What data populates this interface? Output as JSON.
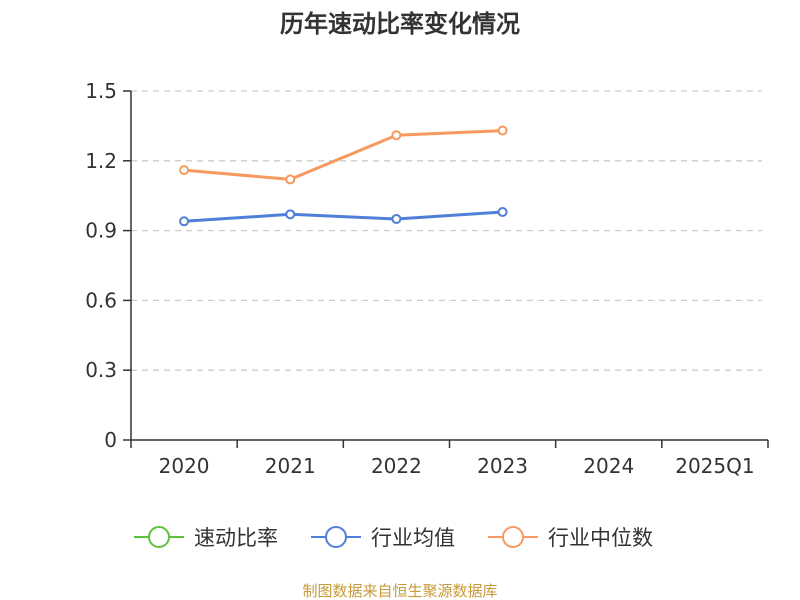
{
  "chart_data": {
    "type": "line",
    "title": "历年速动比率变化情况",
    "xlabel": "",
    "ylabel": "",
    "categories": [
      "2020",
      "2021",
      "2022",
      "2023",
      "2024",
      "2025Q1"
    ],
    "ylim": [
      0,
      1.5
    ],
    "yticks": [
      "0",
      "0.3",
      "0.6",
      "0.9",
      "1.2",
      "1.5"
    ],
    "grid": true,
    "legend_position": "bottom",
    "series": [
      {
        "name": "速动比率",
        "color": "#5ac33b",
        "values": [
          null,
          null,
          null,
          null,
          null,
          null
        ]
      },
      {
        "name": "行业均值",
        "color": "#4f7fd8",
        "values": [
          0.94,
          0.97,
          0.95,
          0.98,
          null,
          null
        ]
      },
      {
        "name": "行业中位数",
        "color": "#f79a5f",
        "values": [
          1.16,
          1.12,
          1.31,
          1.33,
          null,
          null
        ]
      }
    ]
  },
  "footer": {
    "source": "制图数据来自恒生聚源数据库"
  }
}
